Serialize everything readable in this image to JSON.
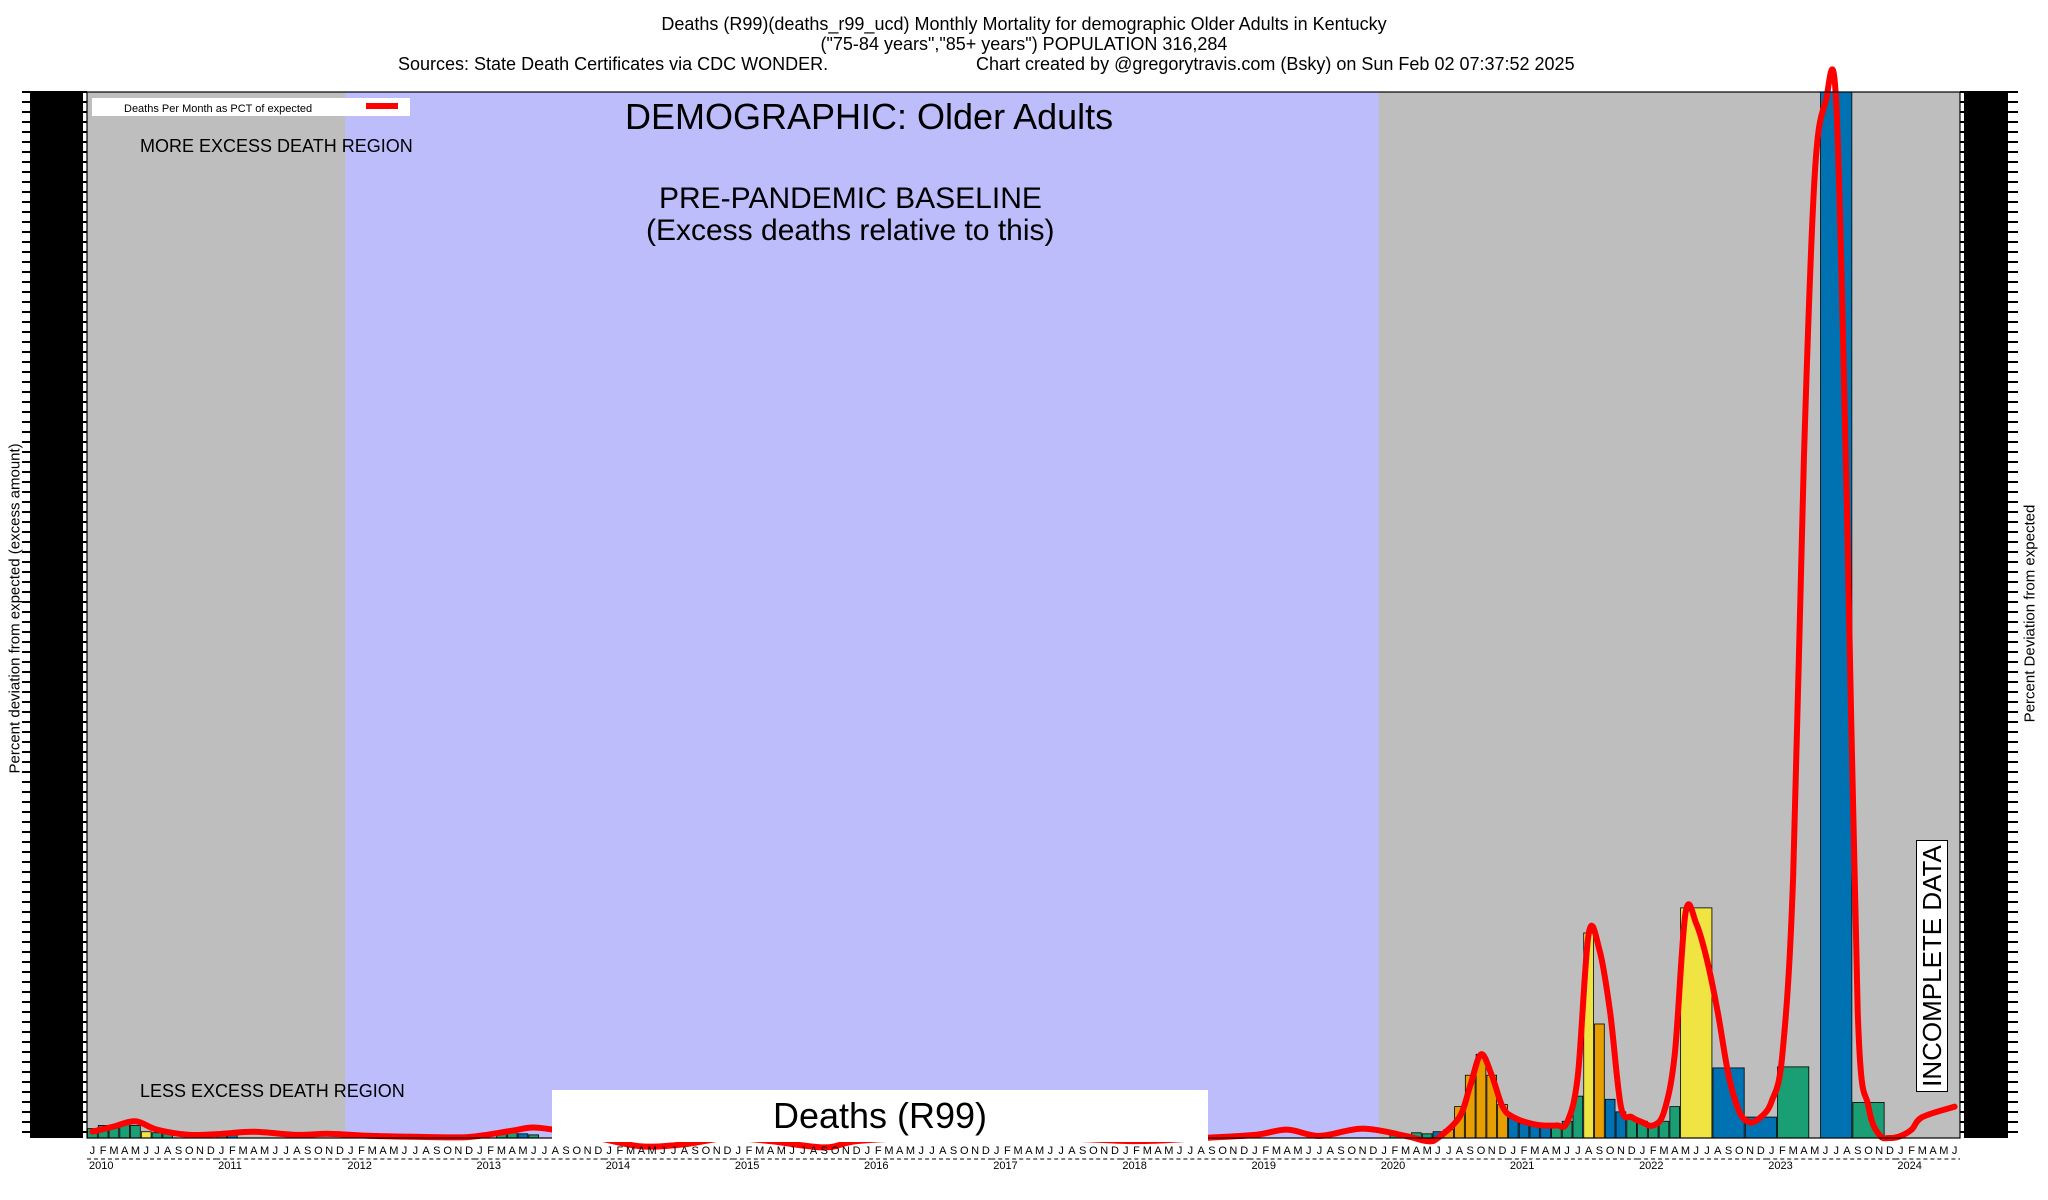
{
  "header": {
    "line1": "Deaths (R99)(deaths_r99_ucd) Monthly Mortality for demographic Older Adults in Kentucky",
    "line2": "(\"75-84 years\",\"85+ years\") POPULATION 316,284",
    "line3_left": "Sources: State Death Certificates via CDC WONDER.",
    "line3_right": "Chart created by @gregorytravis.com (Bsky) on Sun Feb 02 07:37:52 2025"
  },
  "overlays": {
    "demographic": "DEMOGRAPHIC: Older Adults",
    "baseline_line1": "PRE-PANDEMIC BASELINE",
    "baseline_line2": "(Excess deaths relative to this)",
    "more_region": "MORE EXCESS DEATH REGION",
    "less_region": "LESS EXCESS DEATH REGION",
    "cause_box": "Deaths (R99)",
    "incomplete": "INCOMPLETE DATA"
  },
  "chart_data": {
    "type": "bar",
    "title": "Deaths (R99)(deaths_r99_ucd) Monthly Mortality for demographic Older Adults in Kentucky",
    "ylabel_left": "Percent deviation from expected (excess amount)",
    "ylabel_right": "Percent Deviation from expected",
    "legend": {
      "label": "Deaths Per Month as PCT of expected",
      "color": "#ff0000",
      "placement": "top-left"
    },
    "x_month_letters": [
      "J",
      "F",
      "M",
      "A",
      "M",
      "J",
      "J",
      "A",
      "S",
      "O",
      "N",
      "D"
    ],
    "years": [
      "2010",
      "2011",
      "2012",
      "2013",
      "2014",
      "2015",
      "2016",
      "2017",
      "2018",
      "2019",
      "2020",
      "2021",
      "2022",
      "2023",
      "2024"
    ],
    "x_range": [
      "2010-01",
      "2024-06"
    ],
    "ylim": [
      0,
      100
    ],
    "baseline_period": [
      "2012-01",
      "2019-12"
    ],
    "incomplete_period": [
      "2024-04",
      "2024-06"
    ],
    "region_colors": {
      "baseline": "#bdbdfb",
      "outside": "#bebebe"
    },
    "bar_colors": [
      "#1a9e74",
      "#0072b2",
      "#f0e442",
      "#e69f00"
    ],
    "bars": [
      {
        "month": "2010-01",
        "value": 0.9,
        "color": "#1a9e74"
      },
      {
        "month": "2010-02",
        "value": 1.2,
        "color": "#1a9e74"
      },
      {
        "month": "2010-03",
        "value": 1.0,
        "color": "#1a9e74"
      },
      {
        "month": "2010-04",
        "value": 1.4,
        "color": "#1a9e74"
      },
      {
        "month": "2010-05",
        "value": 1.2,
        "color": "#1a9e74"
      },
      {
        "month": "2010-06",
        "value": 0.6,
        "color": "#f0e442"
      },
      {
        "month": "2010-07",
        "value": 0.5,
        "color": "#1a9e74"
      },
      {
        "month": "2010-08",
        "value": 0.4,
        "color": "#1a9e74"
      },
      {
        "month": "2011-01",
        "value": 0.3,
        "color": "#1a9e74"
      },
      {
        "month": "2011-02",
        "value": 0.3,
        "color": "#0072b2"
      },
      {
        "month": "2013-03",
        "value": 0.4,
        "color": "#1a9e74"
      },
      {
        "month": "2013-04",
        "value": 0.5,
        "color": "#1a9e74"
      },
      {
        "month": "2013-05",
        "value": 0.4,
        "color": "#0072b2"
      },
      {
        "month": "2013-06",
        "value": 0.3,
        "color": "#1a9e74"
      },
      {
        "month": "2020-02",
        "value": 0.3,
        "color": "#1a9e74"
      },
      {
        "month": "2020-03",
        "value": 0.3,
        "color": "#1a9e74"
      },
      {
        "month": "2020-04",
        "value": 0.5,
        "color": "#1a9e74"
      },
      {
        "month": "2020-05",
        "value": 0.4,
        "color": "#1a9e74"
      },
      {
        "month": "2020-06",
        "value": 0.6,
        "color": "#0072b2"
      },
      {
        "month": "2020-07",
        "value": 0.8,
        "color": "#e69f00"
      },
      {
        "month": "2020-08",
        "value": 3.0,
        "color": "#e69f00"
      },
      {
        "month": "2020-09",
        "value": 6.0,
        "color": "#e69f00"
      },
      {
        "month": "2020-10",
        "value": 8.0,
        "color": "#e69f00"
      },
      {
        "month": "2020-11",
        "value": 6.0,
        "color": "#e69f00"
      },
      {
        "month": "2020-12",
        "value": 3.2,
        "color": "#e69f00"
      },
      {
        "month": "2021-01",
        "value": 1.9,
        "color": "#0072b2"
      },
      {
        "month": "2021-02",
        "value": 1.4,
        "color": "#0072b2"
      },
      {
        "month": "2021-03",
        "value": 1.3,
        "color": "#0072b2"
      },
      {
        "month": "2021-04",
        "value": 1.2,
        "color": "#0072b2"
      },
      {
        "month": "2021-05",
        "value": 1.1,
        "color": "#1a9e74"
      },
      {
        "month": "2021-06",
        "value": 1.6,
        "color": "#1a9e74"
      },
      {
        "month": "2021-07",
        "value": 4.0,
        "color": "#1a9e74"
      },
      {
        "month": "2021-08",
        "value": 19.6,
        "color": "#f0e442"
      },
      {
        "month": "2021-09",
        "value": 10.9,
        "color": "#e69f00"
      },
      {
        "month": "2021-10",
        "value": 3.7,
        "color": "#0072b2"
      },
      {
        "month": "2021-11",
        "value": 2.5,
        "color": "#0072b2"
      },
      {
        "month": "2021-12",
        "value": 1.9,
        "color": "#1a9e74"
      },
      {
        "month": "2022-01",
        "value": 1.6,
        "color": "#1a9e74"
      },
      {
        "month": "2022-02",
        "value": 1.4,
        "color": "#1a9e74"
      },
      {
        "month": "2022-03",
        "value": 1.6,
        "color": "#1a9e74"
      },
      {
        "month": "2022-04",
        "value": 3.0,
        "color": "#1a9e74"
      },
      {
        "month": "2022-05",
        "value": 22.0,
        "color": "#f0e442"
      },
      {
        "month": "2022-08",
        "value": 6.7,
        "color": "#0072b2"
      },
      {
        "month": "2022-11",
        "value": 2.0,
        "color": "#0072b2"
      },
      {
        "month": "2023-02",
        "value": 6.8,
        "color": "#1a9e74"
      },
      {
        "month": "2023-06",
        "value": 100,
        "color": "#0072b2"
      },
      {
        "month": "2023-09",
        "value": 3.4,
        "color": "#1a9e74"
      }
    ],
    "bar_spans_months": {
      "2022-05": 3,
      "2022-08": 3,
      "2022-11": 3,
      "2023-02": 3,
      "2023-06": 3,
      "2023-09": 3
    },
    "series": [
      {
        "name": "Deaths Per Month as PCT of expected",
        "color": "#ff0000",
        "points": [
          [
            "2010-01",
            0.6
          ],
          [
            "2010-03",
            1.1
          ],
          [
            "2010-05",
            1.6
          ],
          [
            "2010-07",
            0.8
          ],
          [
            "2010-10",
            0.3
          ],
          [
            "2011-01",
            0.4
          ],
          [
            "2011-04",
            0.6
          ],
          [
            "2011-08",
            0.3
          ],
          [
            "2011-11",
            0.4
          ],
          [
            "2012-03",
            0.2
          ],
          [
            "2012-08",
            0.1
          ],
          [
            "2012-12",
            0.1
          ],
          [
            "2013-04",
            0.7
          ],
          [
            "2013-06",
            1.0
          ],
          [
            "2013-09",
            0.6
          ],
          [
            "2013-12",
            0.0
          ],
          [
            "2014-04",
            -0.8
          ],
          [
            "2014-08",
            -0.6
          ],
          [
            "2014-12",
            0.0
          ],
          [
            "2015-04",
            -0.3
          ],
          [
            "2015-09",
            -0.9
          ],
          [
            "2015-12",
            -0.3
          ],
          [
            "2016-06",
            0.0
          ],
          [
            "2017-06",
            0.0
          ],
          [
            "2018-02",
            -0.3
          ],
          [
            "2018-08",
            0.0
          ],
          [
            "2019-01",
            0.3
          ],
          [
            "2019-04",
            0.8
          ],
          [
            "2019-07",
            0.2
          ],
          [
            "2019-11",
            0.9
          ],
          [
            "2020-03",
            0.2
          ],
          [
            "2020-05",
            -0.3
          ],
          [
            "2020-06",
            0.0
          ],
          [
            "2020-08",
            2.0
          ],
          [
            "2020-09",
            5.0
          ],
          [
            "2020-10",
            8.0
          ],
          [
            "2020-11",
            6.0
          ],
          [
            "2020-12",
            3.0
          ],
          [
            "2021-01",
            2.0
          ],
          [
            "2021-03",
            1.3
          ],
          [
            "2021-05",
            1.2
          ],
          [
            "2021-06",
            1.5
          ],
          [
            "2021-07",
            6.0
          ],
          [
            "2021-08",
            19.5
          ],
          [
            "2021-09",
            18.0
          ],
          [
            "2021-10",
            12.0
          ],
          [
            "2021-11",
            3.0
          ],
          [
            "2021-12",
            2.0
          ],
          [
            "2022-01",
            1.5
          ],
          [
            "2022-02",
            1.2
          ],
          [
            "2022-03",
            2.5
          ],
          [
            "2022-04",
            8.0
          ],
          [
            "2022-05",
            21.5
          ],
          [
            "2022-06",
            20.5
          ],
          [
            "2022-07",
            17.0
          ],
          [
            "2022-08",
            12.0
          ],
          [
            "2022-09",
            6.0
          ],
          [
            "2022-10",
            2.5
          ],
          [
            "2022-11",
            1.5
          ],
          [
            "2022-12",
            2.0
          ],
          [
            "2023-01",
            3.5
          ],
          [
            "2023-02",
            8.0
          ],
          [
            "2023-03",
            25.0
          ],
          [
            "2023-04",
            65.0
          ],
          [
            "2023-05",
            92.0
          ],
          [
            "2023-06",
            99.0
          ],
          [
            "2023-07",
            99.0
          ],
          [
            "2023-08",
            60.0
          ],
          [
            "2023-09",
            12.0
          ],
          [
            "2023-10",
            3.0
          ],
          [
            "2023-11",
            0.3
          ],
          [
            "2023-12",
            0.0
          ],
          [
            "2024-01",
            0.2
          ],
          [
            "2024-02",
            0.8
          ],
          [
            "2024-03",
            2.0
          ],
          [
            "2024-06",
            3.0
          ]
        ]
      }
    ]
  }
}
